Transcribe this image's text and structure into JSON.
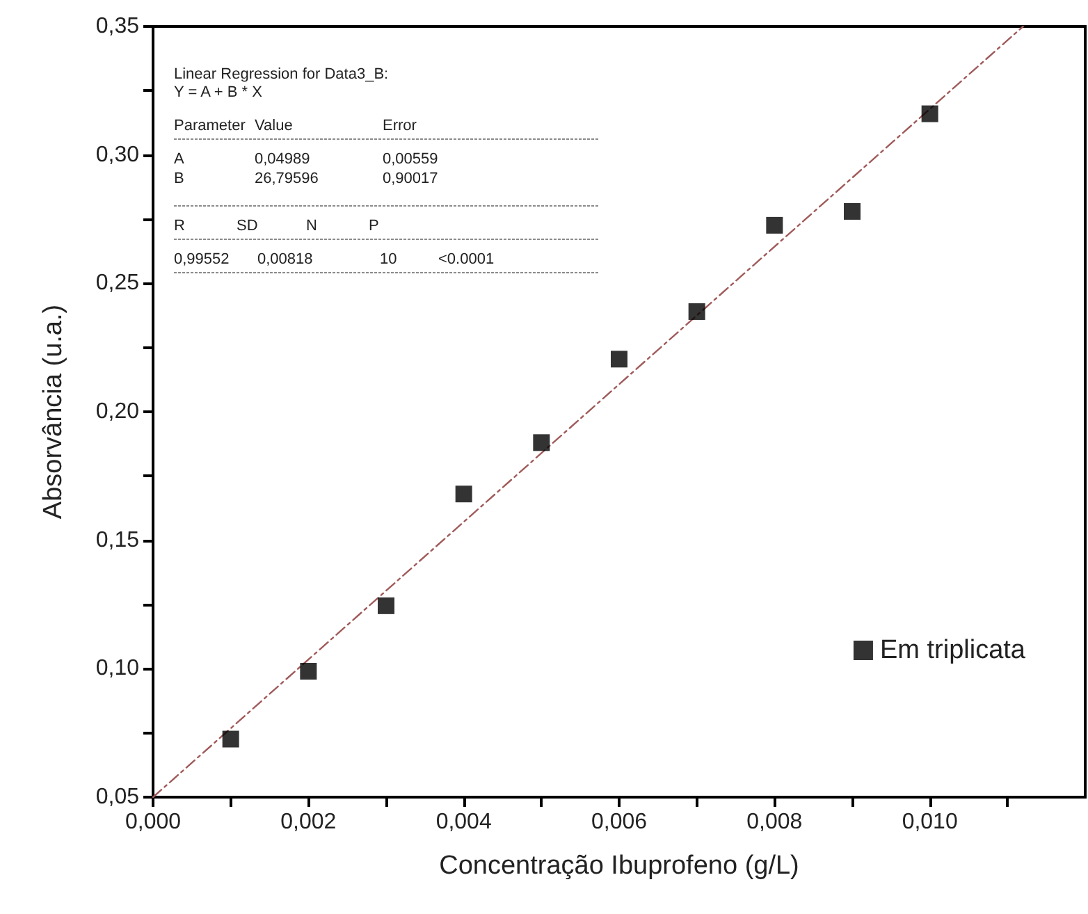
{
  "chart_data": {
    "type": "scatter",
    "xlabel": "Concentração Ibuprofeno (g/L)",
    "ylabel": "Absorvância (u.a.)",
    "xlim": [
      0,
      0.012
    ],
    "ylim": [
      0.05,
      0.35
    ],
    "xticks": [
      {
        "value": 0,
        "label": "0,000"
      },
      {
        "value": 0.001,
        "label": null
      },
      {
        "value": 0.002,
        "label": "0,002"
      },
      {
        "value": 0.003,
        "label": null
      },
      {
        "value": 0.004,
        "label": "0,004"
      },
      {
        "value": 0.005,
        "label": null
      },
      {
        "value": 0.006,
        "label": "0,006"
      },
      {
        "value": 0.007,
        "label": null
      },
      {
        "value": 0.008,
        "label": "0,008"
      },
      {
        "value": 0.009,
        "label": null
      },
      {
        "value": 0.01,
        "label": "0,010"
      },
      {
        "value": 0.011,
        "label": null
      }
    ],
    "yticks": [
      {
        "value": 0.05,
        "label": "0,05"
      },
      {
        "value": 0.075,
        "label": null
      },
      {
        "value": 0.1,
        "label": "0,10"
      },
      {
        "value": 0.125,
        "label": null
      },
      {
        "value": 0.15,
        "label": "0,15"
      },
      {
        "value": 0.175,
        "label": null
      },
      {
        "value": 0.2,
        "label": "0,20"
      },
      {
        "value": 0.225,
        "label": null
      },
      {
        "value": 0.25,
        "label": "0,25"
      },
      {
        "value": 0.275,
        "label": null
      },
      {
        "value": 0.3,
        "label": "0,30"
      },
      {
        "value": 0.325,
        "label": null
      },
      {
        "value": 0.35,
        "label": "0,35"
      }
    ],
    "grid": false,
    "legend": "bottom right",
    "marker": "square",
    "series": [
      {
        "name": "Em triplicata",
        "color": "#000000",
        "x": [
          0.001,
          0.002,
          0.003,
          0.004,
          0.005,
          0.006,
          0.007,
          0.008,
          0.009,
          0.01
        ],
        "values": [
          0.0726,
          0.099,
          0.1245,
          0.168,
          0.188,
          0.2205,
          0.239,
          0.2726,
          0.278,
          0.316
        ]
      },
      {
        "type": "line",
        "color": "#a05a5a",
        "line_style": "dashed",
        "marker": "none",
        "x": [
          0,
          0.0112
        ],
        "values": [
          0.05,
          0.35
        ]
      }
    ],
    "annotations": [
      "Linear Regression for Data3_B:",
      "Y = A + B * X",
      "Parameter\tValue\tError",
      "A\t0,04989\t0,00559",
      "B\t26,79596\t0,90017",
      "R\tSD\tN\tP",
      "0,99552\t0,00818\t10\t<0.0001"
    ]
  }
}
